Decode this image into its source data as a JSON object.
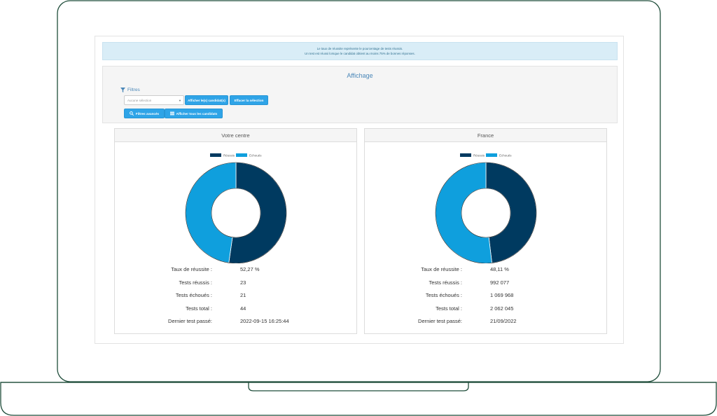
{
  "banner": {
    "line1": "Le taux de réussite représente le pourcentage de tests réussis.",
    "line2": "Un test est réussi lorsque le candidat obtient au moins 75% de bonnes réponses."
  },
  "display": {
    "title": "Affichage",
    "filters_label": "Filtres",
    "select_placeholder": "Aucune sélection",
    "show_candidates_label": "Afficher le(s) candidat(s)",
    "clear_label": "Effacer la sélection",
    "advanced_filters_label": "Filtres avancés",
    "show_all_label": "Afficher tous les candidats"
  },
  "colors": {
    "success": "#003a60",
    "failure": "#0f9fdd",
    "accent_button": "#2fa4e7"
  },
  "cards": [
    {
      "title": "Votre centre",
      "legend_success": "Réussis",
      "legend_failure": "Echoués",
      "stats": [
        {
          "label": "Taux de réussite :",
          "value": "52,27 %"
        },
        {
          "label": "Tests réussis :",
          "value": "23"
        },
        {
          "label": "Tests échoués :",
          "value": "21"
        },
        {
          "label": "Tests total :",
          "value": "44"
        },
        {
          "label": "Dernier test passé:",
          "value": "2022-09-15 16:25:44"
        }
      ]
    },
    {
      "title": "France",
      "legend_success": "Réussis",
      "legend_failure": "Echoués",
      "stats": [
        {
          "label": "Taux de réussite :",
          "value": "48,11 %"
        },
        {
          "label": "Tests réussis :",
          "value": "992 077"
        },
        {
          "label": "Tests échoués :",
          "value": "1 069 968"
        },
        {
          "label": "Tests total :",
          "value": "2 062 045"
        },
        {
          "label": "Dernier test passé:",
          "value": "21/09/2022"
        }
      ]
    }
  ],
  "chart_data": [
    {
      "type": "pie",
      "title": "Votre centre",
      "categories": [
        "Réussis",
        "Echoués"
      ],
      "values": [
        23,
        21
      ]
    },
    {
      "type": "pie",
      "title": "France",
      "categories": [
        "Réussis",
        "Echoués"
      ],
      "values": [
        992077,
        1069968
      ]
    }
  ]
}
